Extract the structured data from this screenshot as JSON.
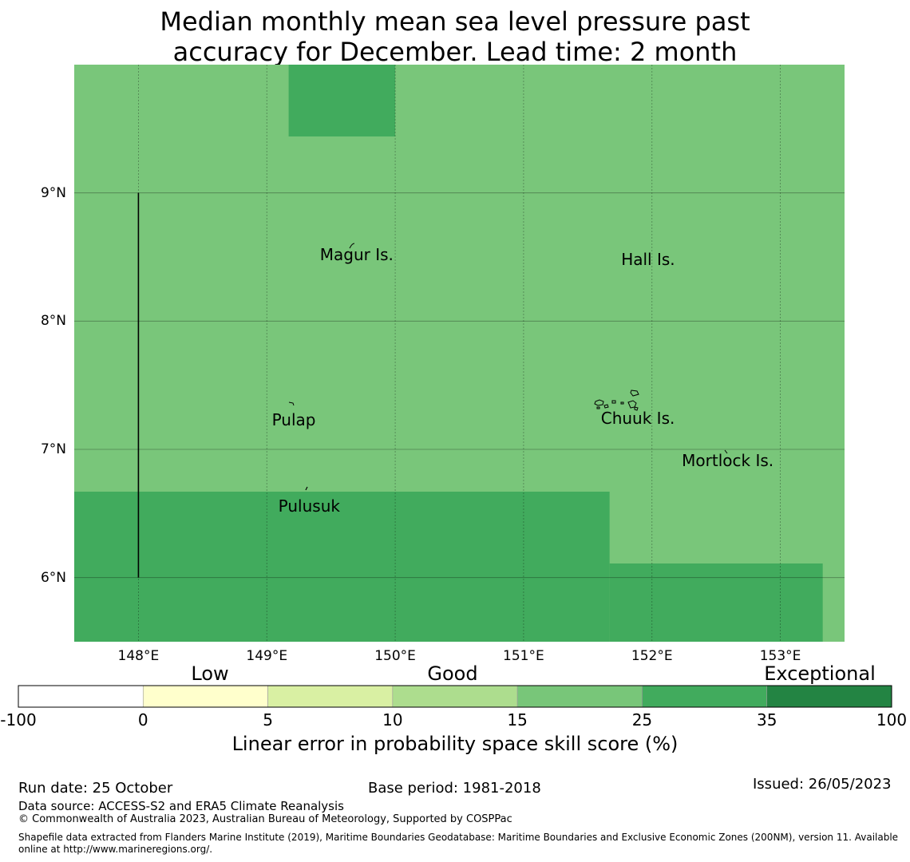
{
  "title_line1": "Median monthly mean sea level pressure past",
  "title_line2": "accuracy for December. Lead time: 2 month",
  "colors": {
    "background": "#79c67a",
    "good25": "#41ab5d",
    "exceptional": "#238443",
    "scale": [
      "#ffffff",
      "#ffffcc",
      "#d9f0a3",
      "#addd8e",
      "#78c679",
      "#41ab5d",
      "#238443"
    ]
  },
  "map": {
    "lon_range": [
      147.5,
      153.5
    ],
    "lat_range": [
      5.5,
      10.0
    ],
    "lon_ticks": [
      {
        "value": 148,
        "label": "148°E"
      },
      {
        "value": 149,
        "label": "149°E"
      },
      {
        "value": 150,
        "label": "150°E"
      },
      {
        "value": 151,
        "label": "151°E"
      },
      {
        "value": 152,
        "label": "152°E"
      },
      {
        "value": 153,
        "label": "153°E"
      }
    ],
    "lat_ticks": [
      {
        "value": 9,
        "label": "9°N"
      },
      {
        "value": 8,
        "label": "8°N"
      },
      {
        "value": 7,
        "label": "7°N"
      },
      {
        "value": 6,
        "label": "6°N"
      }
    ],
    "regions": [
      {
        "name": "north-block",
        "lon": [
          149.17,
          150.0
        ],
        "lat": [
          9.44,
          10.0
        ],
        "category": "good25"
      },
      {
        "name": "south-block-west",
        "lon": [
          147.5,
          151.67
        ],
        "lat": [
          5.5,
          6.67
        ],
        "category": "good25"
      },
      {
        "name": "south-block-east",
        "lon": [
          151.67,
          153.33
        ],
        "lat": [
          5.5,
          6.11
        ],
        "category": "good25"
      }
    ],
    "places": [
      {
        "name": "Magur Is.",
        "lon": 149.7,
        "lat": 8.52
      },
      {
        "name": "Hall Is.",
        "lon": 151.97,
        "lat": 8.48
      },
      {
        "name": "Pulap",
        "lon": 149.21,
        "lat": 7.23
      },
      {
        "name": "Chuuk Is.",
        "lon": 151.89,
        "lat": 7.24
      },
      {
        "name": "Mortlock Is.",
        "lon": 152.59,
        "lat": 6.91
      },
      {
        "name": "Pulusuk",
        "lon": 149.33,
        "lat": 6.56
      }
    ],
    "boundary_line": {
      "lon": 148.0,
      "lat": [
        6.0,
        9.0
      ]
    }
  },
  "colorbar": {
    "categories": [
      {
        "label": "Low",
        "x": 263
      },
      {
        "label": "Good",
        "x": 567
      },
      {
        "label": "Exceptional",
        "x": 1027
      }
    ],
    "ticks": [
      "-100",
      "0",
      "5",
      "10",
      "15",
      "25",
      "35",
      "100"
    ],
    "title": "Linear error in probability space skill score (%)"
  },
  "footer": {
    "run_date": "Run date: 25 October",
    "base_period": "Base period: 1981-2018",
    "issued": "Issued: 26/05/2023",
    "data_source": "Data source: ACCESS-S2 and ERA5 Climate Reanalysis",
    "copyright": "© Commonwealth of Australia 2023, Australian Bureau of Meteorology, Supported by COSPPac",
    "shapefile_line1": "Shapefile data extracted from Flanders Marine Institute (2019), Maritime Boundaries Geodatabase: Maritime Boundaries and Exclusive Economic Zones (200NM), version 11. Available",
    "shapefile_line2": "online at http://www.marineregions.org/."
  }
}
